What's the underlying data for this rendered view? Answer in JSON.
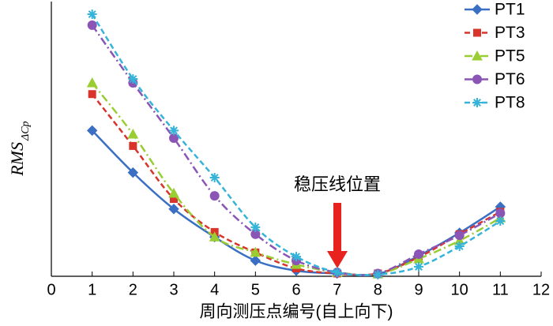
{
  "chart_data": {
    "type": "line",
    "x_label": "周向测压点编号(自上向下)",
    "y_label": "RMS",
    "y_label_subscript": "ΔCp",
    "annotation": "稳压线位置",
    "xlim": [
      0,
      12
    ],
    "xticks": [
      0,
      1,
      2,
      3,
      4,
      5,
      6,
      7,
      8,
      9,
      10,
      11,
      12
    ],
    "ylim": [
      0,
      9.7
    ],
    "x": [
      1,
      2,
      3,
      4,
      5,
      6,
      7,
      8,
      9,
      10,
      11
    ],
    "series": [
      {
        "name": "PT1",
        "color": "#3a6fc4",
        "marker": "diamond",
        "dash": "solid",
        "values": [
          5.2,
          3.7,
          2.4,
          1.4,
          0.56,
          0.2,
          0.1,
          0.08,
          0.73,
          1.55,
          2.48
        ]
      },
      {
        "name": "PT3",
        "color": "#d9342b",
        "marker": "square",
        "dash": "dashed",
        "values": [
          6.5,
          4.65,
          2.76,
          1.58,
          0.85,
          0.28,
          0.1,
          0.1,
          0.68,
          1.5,
          2.3
        ]
      },
      {
        "name": "PT5",
        "color": "#9acd32",
        "marker": "triangle",
        "dash": "dashdot",
        "values": [
          6.9,
          5.07,
          2.96,
          1.4,
          0.85,
          0.42,
          0.14,
          0.08,
          0.62,
          1.27,
          2.08
        ]
      },
      {
        "name": "PT6",
        "color": "#8a55b5",
        "marker": "circle",
        "dash": "dashdot",
        "values": [
          8.96,
          6.9,
          4.93,
          2.87,
          1.5,
          0.56,
          0.14,
          0.1,
          0.79,
          1.46,
          2.25
        ]
      },
      {
        "name": "PT8",
        "color": "#35b3d9",
        "marker": "star",
        "dash": "dashed",
        "values": [
          9.35,
          7.04,
          5.2,
          3.52,
          1.75,
          0.7,
          0.14,
          0.06,
          0.34,
          1.07,
          1.97
        ]
      }
    ]
  }
}
